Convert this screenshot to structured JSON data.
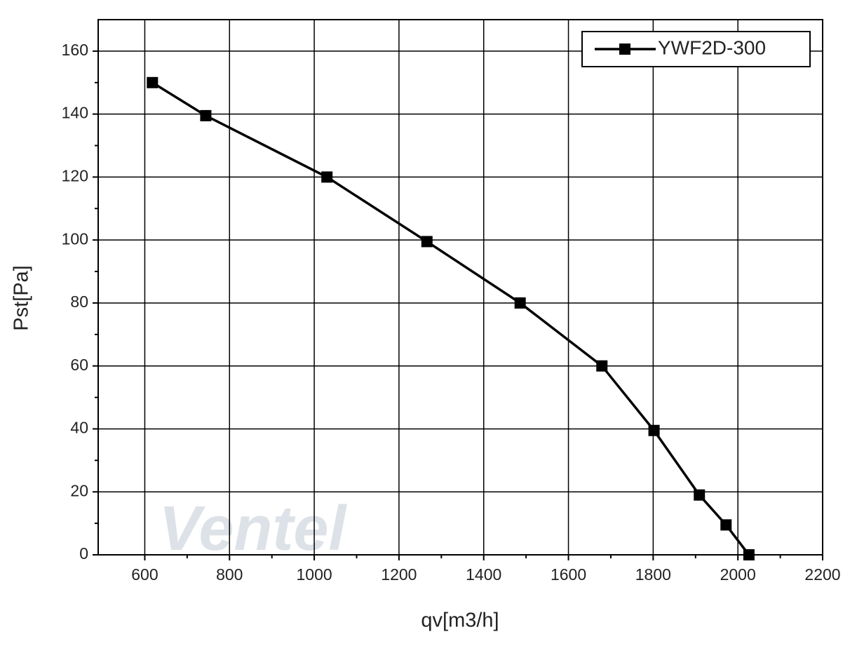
{
  "chart_data": {
    "type": "line",
    "x_label": "qv[m3/h]",
    "y_label": "Pst[Pa]",
    "watermark": "Ventel",
    "xlim": [
      490,
      2200
    ],
    "xticks": [
      600,
      800,
      1000,
      1200,
      1400,
      1600,
      1800,
      2000,
      2200
    ],
    "ylim": [
      0,
      170
    ],
    "yticks": [
      0,
      20,
      40,
      60,
      80,
      100,
      120,
      140,
      160
    ],
    "grid": true,
    "legend": "upper right",
    "series": [
      {
        "name": "YWF2D-300",
        "color": "#000000",
        "x": [
          618,
          744,
          1030,
          1266,
          1486,
          1679,
          1802,
          1909,
          1972,
          2026
        ],
        "values": [
          150,
          139.5,
          120,
          99.5,
          80,
          60,
          39.5,
          19,
          9.5,
          0
        ]
      }
    ]
  }
}
